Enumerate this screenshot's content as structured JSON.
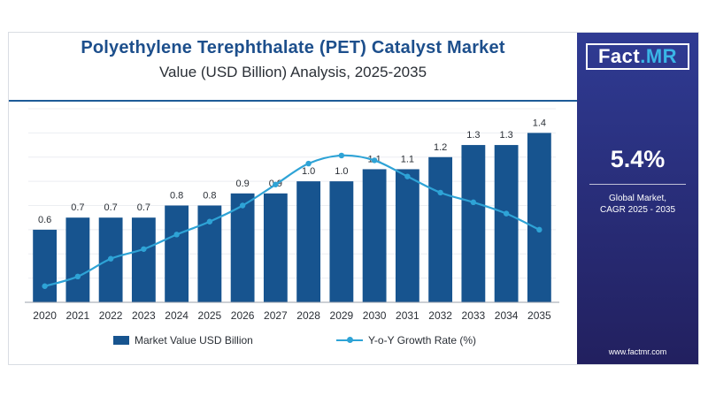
{
  "header": {
    "title": "Polyethylene Terephthalate (PET) Catalyst Market",
    "subtitle": "Value (USD Billion) Analysis, 2025-2035"
  },
  "side_panel": {
    "logo_part1": "Fact",
    "logo_part2": ".MR",
    "cagr_value": "5.4%",
    "cagr_label_line1": "Global Market,",
    "cagr_label_line2": "CAGR 2025 - 2035",
    "website": "www.factmr.com"
  },
  "legend": {
    "bar_label": "Market Value USD Billion",
    "line_label": "Y-o-Y Growth Rate (%)"
  },
  "colors": {
    "bar": "#17548f",
    "line": "#2ea3d6",
    "title": "#1d4f8c",
    "panel": "#2b2f7d"
  },
  "chart_data": {
    "type": "bar",
    "categories": [
      "2020",
      "2021",
      "2022",
      "2023",
      "2024",
      "2025",
      "2026",
      "2027",
      "2028",
      "2029",
      "2030",
      "2031",
      "2032",
      "2033",
      "2034",
      "2035"
    ],
    "series": [
      {
        "name": "Market Value USD Billion",
        "type": "bar",
        "values": [
          0.6,
          0.7,
          0.7,
          0.7,
          0.8,
          0.8,
          0.9,
          0.9,
          1.0,
          1.0,
          1.1,
          1.1,
          1.2,
          1.3,
          1.3,
          1.4
        ],
        "value_labels": [
          "0.6",
          "0.7",
          "0.7",
          "0.7",
          "0.8",
          "0.8",
          "0.9",
          "0.9",
          "1.0",
          "1.0",
          "1.1",
          "1.1",
          "1.2",
          "1.3",
          "1.3",
          "1.4"
        ]
      },
      {
        "name": "Y-o-Y Growth Rate (%)",
        "type": "line",
        "values": [
          1.0,
          1.6,
          2.7,
          3.3,
          4.2,
          5.0,
          6.0,
          7.3,
          8.6,
          9.1,
          8.8,
          7.8,
          6.8,
          6.2,
          5.5,
          4.5
        ]
      }
    ],
    "ylim": [
      0,
      1.6
    ],
    "y2lim": [
      0,
      12
    ],
    "grid": true,
    "legend_position": "bottom"
  }
}
